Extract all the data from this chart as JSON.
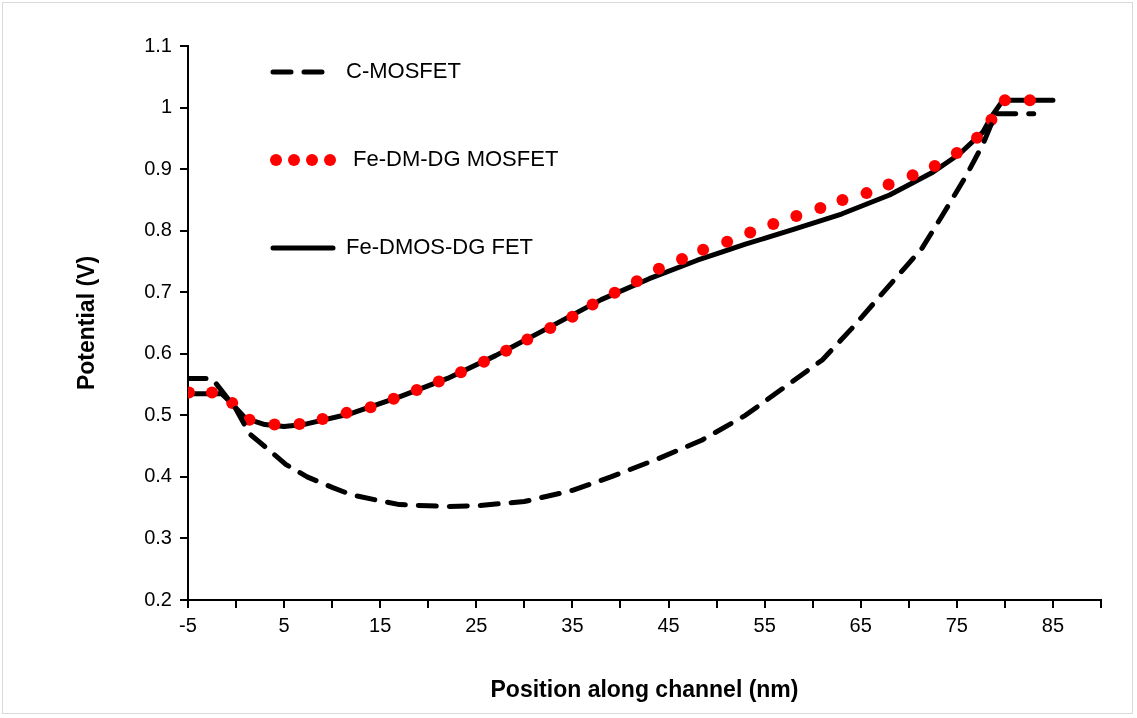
{
  "chart_data": {
    "type": "line",
    "xlabel": "Position along channel (nm)",
    "ylabel": "Potential (V)",
    "xlim": [
      -5,
      90
    ],
    "ylim": [
      0.2,
      1.1
    ],
    "xticks": [
      -5,
      {
        "value": 0,
        "label": null
      },
      5,
      {
        "value": 10,
        "label": null
      },
      15,
      {
        "value": 20,
        "label": null
      },
      25,
      {
        "value": 30,
        "label": null
      },
      35,
      {
        "value": 40,
        "label": null
      },
      45,
      {
        "value": 50,
        "label": null
      },
      55,
      {
        "value": 60,
        "label": null
      },
      65,
      {
        "value": 70,
        "label": null
      },
      75,
      {
        "value": 80,
        "label": null
      },
      85,
      {
        "value": 90,
        "label": null
      }
    ],
    "yticks": [
      0.2,
      0.3,
      0.4,
      0.5,
      0.6,
      0.7,
      0.8,
      0.9,
      1,
      1.1
    ],
    "grid": false,
    "legend": "top left",
    "series": [
      {
        "name": "C-MOSFET",
        "color": "#000000",
        "line_style": "dashed",
        "marker": "none",
        "x": [
          -5,
          -2.5,
          -1,
          0,
          1.4,
          3.4,
          5.2,
          7.4,
          10,
          12,
          14.4,
          17,
          20,
          22,
          25,
          30,
          35,
          39,
          44,
          48.5,
          53,
          57,
          61,
          64,
          70,
          71.4,
          73.5,
          76,
          77.7,
          78.5,
          79.2,
          83
        ],
        "values": [
          0.56,
          0.56,
          0.53,
          0.51,
          0.47,
          0.444,
          0.42,
          0.4,
          0.383,
          0.371,
          0.363,
          0.355,
          0.353,
          0.352,
          0.353,
          0.36,
          0.378,
          0.4,
          0.43,
          0.46,
          0.5,
          0.545,
          0.59,
          0.64,
          0.747,
          0.772,
          0.825,
          0.89,
          0.94,
          0.97,
          0.99,
          0.99
        ]
      },
      {
        "name": "Fe-DM-DG MOSFET",
        "type": "scatter",
        "color": "#ff0000",
        "marker": "circle",
        "x": [
          -4.9,
          -2.5,
          -0.4,
          1.4,
          4.0,
          6.6,
          9.0,
          11.5,
          14.0,
          16.4,
          18.8,
          21.1,
          23.4,
          25.8,
          28.1,
          30.3,
          32.7,
          35.0,
          37.1,
          39.4,
          41.7,
          44.0,
          46.4,
          48.6,
          51.1,
          53.5,
          55.9,
          58.3,
          60.8,
          63.1,
          65.6,
          67.9,
          70.4,
          72.7,
          75.0,
          77.1,
          78.6,
          80.0,
          82.6
        ],
        "values": [
          0.537,
          0.537,
          0.52,
          0.493,
          0.485,
          0.486,
          0.494,
          0.504,
          0.513,
          0.527,
          0.541,
          0.555,
          0.57,
          0.587,
          0.605,
          0.623,
          0.642,
          0.66,
          0.68,
          0.699,
          0.718,
          0.738,
          0.754,
          0.769,
          0.782,
          0.797,
          0.811,
          0.824,
          0.837,
          0.85,
          0.861,
          0.875,
          0.89,
          0.905,
          0.926,
          0.951,
          0.98,
          1.012,
          1.012
        ]
      },
      {
        "name": "Fe-DMOS-DG FET",
        "color": "#000000",
        "line_style": "solid",
        "marker": "none",
        "x": [
          -5,
          -1.5,
          -0.5,
          1,
          3,
          5,
          7,
          12,
          17,
          22,
          27,
          32,
          38,
          43,
          48,
          53,
          58,
          63,
          68,
          72.5,
          75.3,
          77.7,
          78.6,
          79.8,
          85
        ],
        "values": [
          0.535,
          0.535,
          0.52,
          0.495,
          0.485,
          0.482,
          0.485,
          0.503,
          0.53,
          0.56,
          0.597,
          0.638,
          0.688,
          0.722,
          0.752,
          0.778,
          0.802,
          0.827,
          0.858,
          0.895,
          0.925,
          0.96,
          0.985,
          1.012,
          1.012
        ]
      }
    ]
  }
}
